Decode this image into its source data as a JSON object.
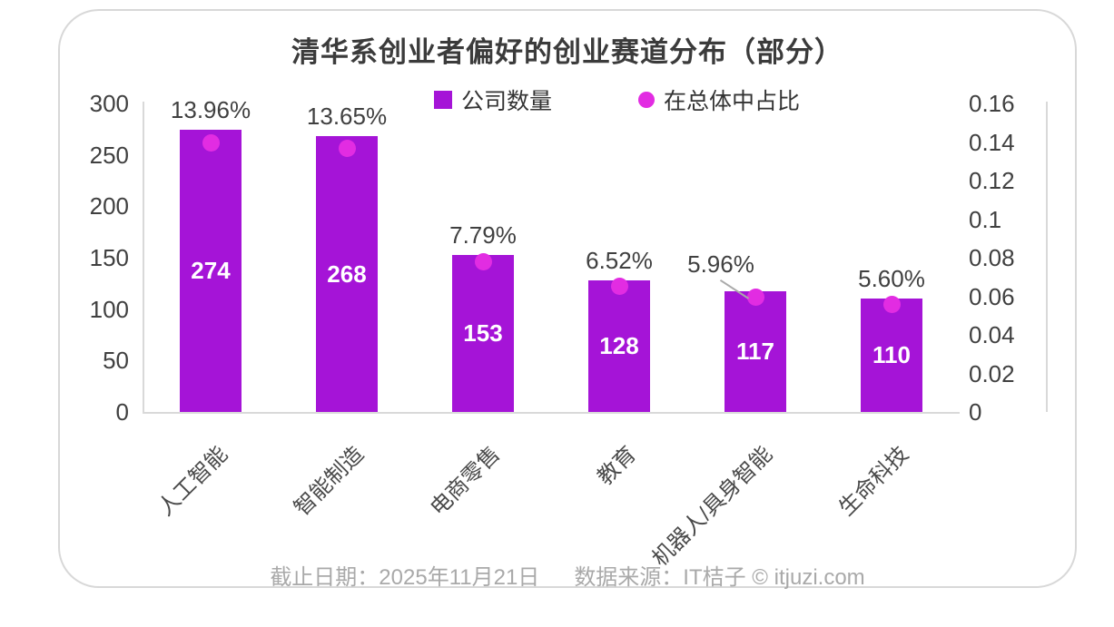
{
  "card": {
    "title": "清华系创业者偏好的创业赛道分布（部分）",
    "footer_left": "截止日期：2025年11月21日",
    "footer_right": "数据来源：IT桔子 © itjuzi.com"
  },
  "legend": {
    "bar_label": "公司数量",
    "dot_label": "在总体中占比"
  },
  "colors": {
    "bar": "#A514D7",
    "dot": "#E22CE2",
    "title_text": "#3B3B3B",
    "axis_text": "#404040",
    "category_text": "#4A4A4A",
    "value_text": "#FFFFFF",
    "axis_line": "#D9D9D9",
    "footer_text": "#A9A9A9",
    "leader_line": "#AAAAAA",
    "card_border": "#D8D8D8"
  },
  "chart_data": {
    "type": "bar",
    "title": "清华系创业者偏好的创业赛道分布（部分）",
    "categories": [
      "人工智能",
      "智能制造",
      "电商零售",
      "教育",
      "机器人/具身智能",
      "生命科技"
    ],
    "series": [
      {
        "name": "公司数量",
        "type": "bar",
        "axis": "left",
        "values": [
          274,
          268,
          153,
          128,
          117,
          110
        ]
      },
      {
        "name": "在总体中占比",
        "type": "scatter",
        "axis": "right",
        "values": [
          0.1396,
          0.1365,
          0.0779,
          0.0652,
          0.0596,
          0.056
        ],
        "labels": [
          "13.96%",
          "13.65%",
          "7.79%",
          "6.52%",
          "5.96%",
          "5.60%"
        ]
      }
    ],
    "left_axis": {
      "max": 300,
      "ticks": [
        0,
        50,
        100,
        150,
        200,
        250,
        300
      ]
    },
    "right_axis": {
      "max": 0.16,
      "tick_labels": [
        "0",
        "0.02",
        "0.04",
        "0.06",
        "0.08",
        "0.1",
        "0.12",
        "0.14",
        "0.16"
      ]
    },
    "grid": false,
    "legend_position": "top",
    "callout_index": 4
  }
}
